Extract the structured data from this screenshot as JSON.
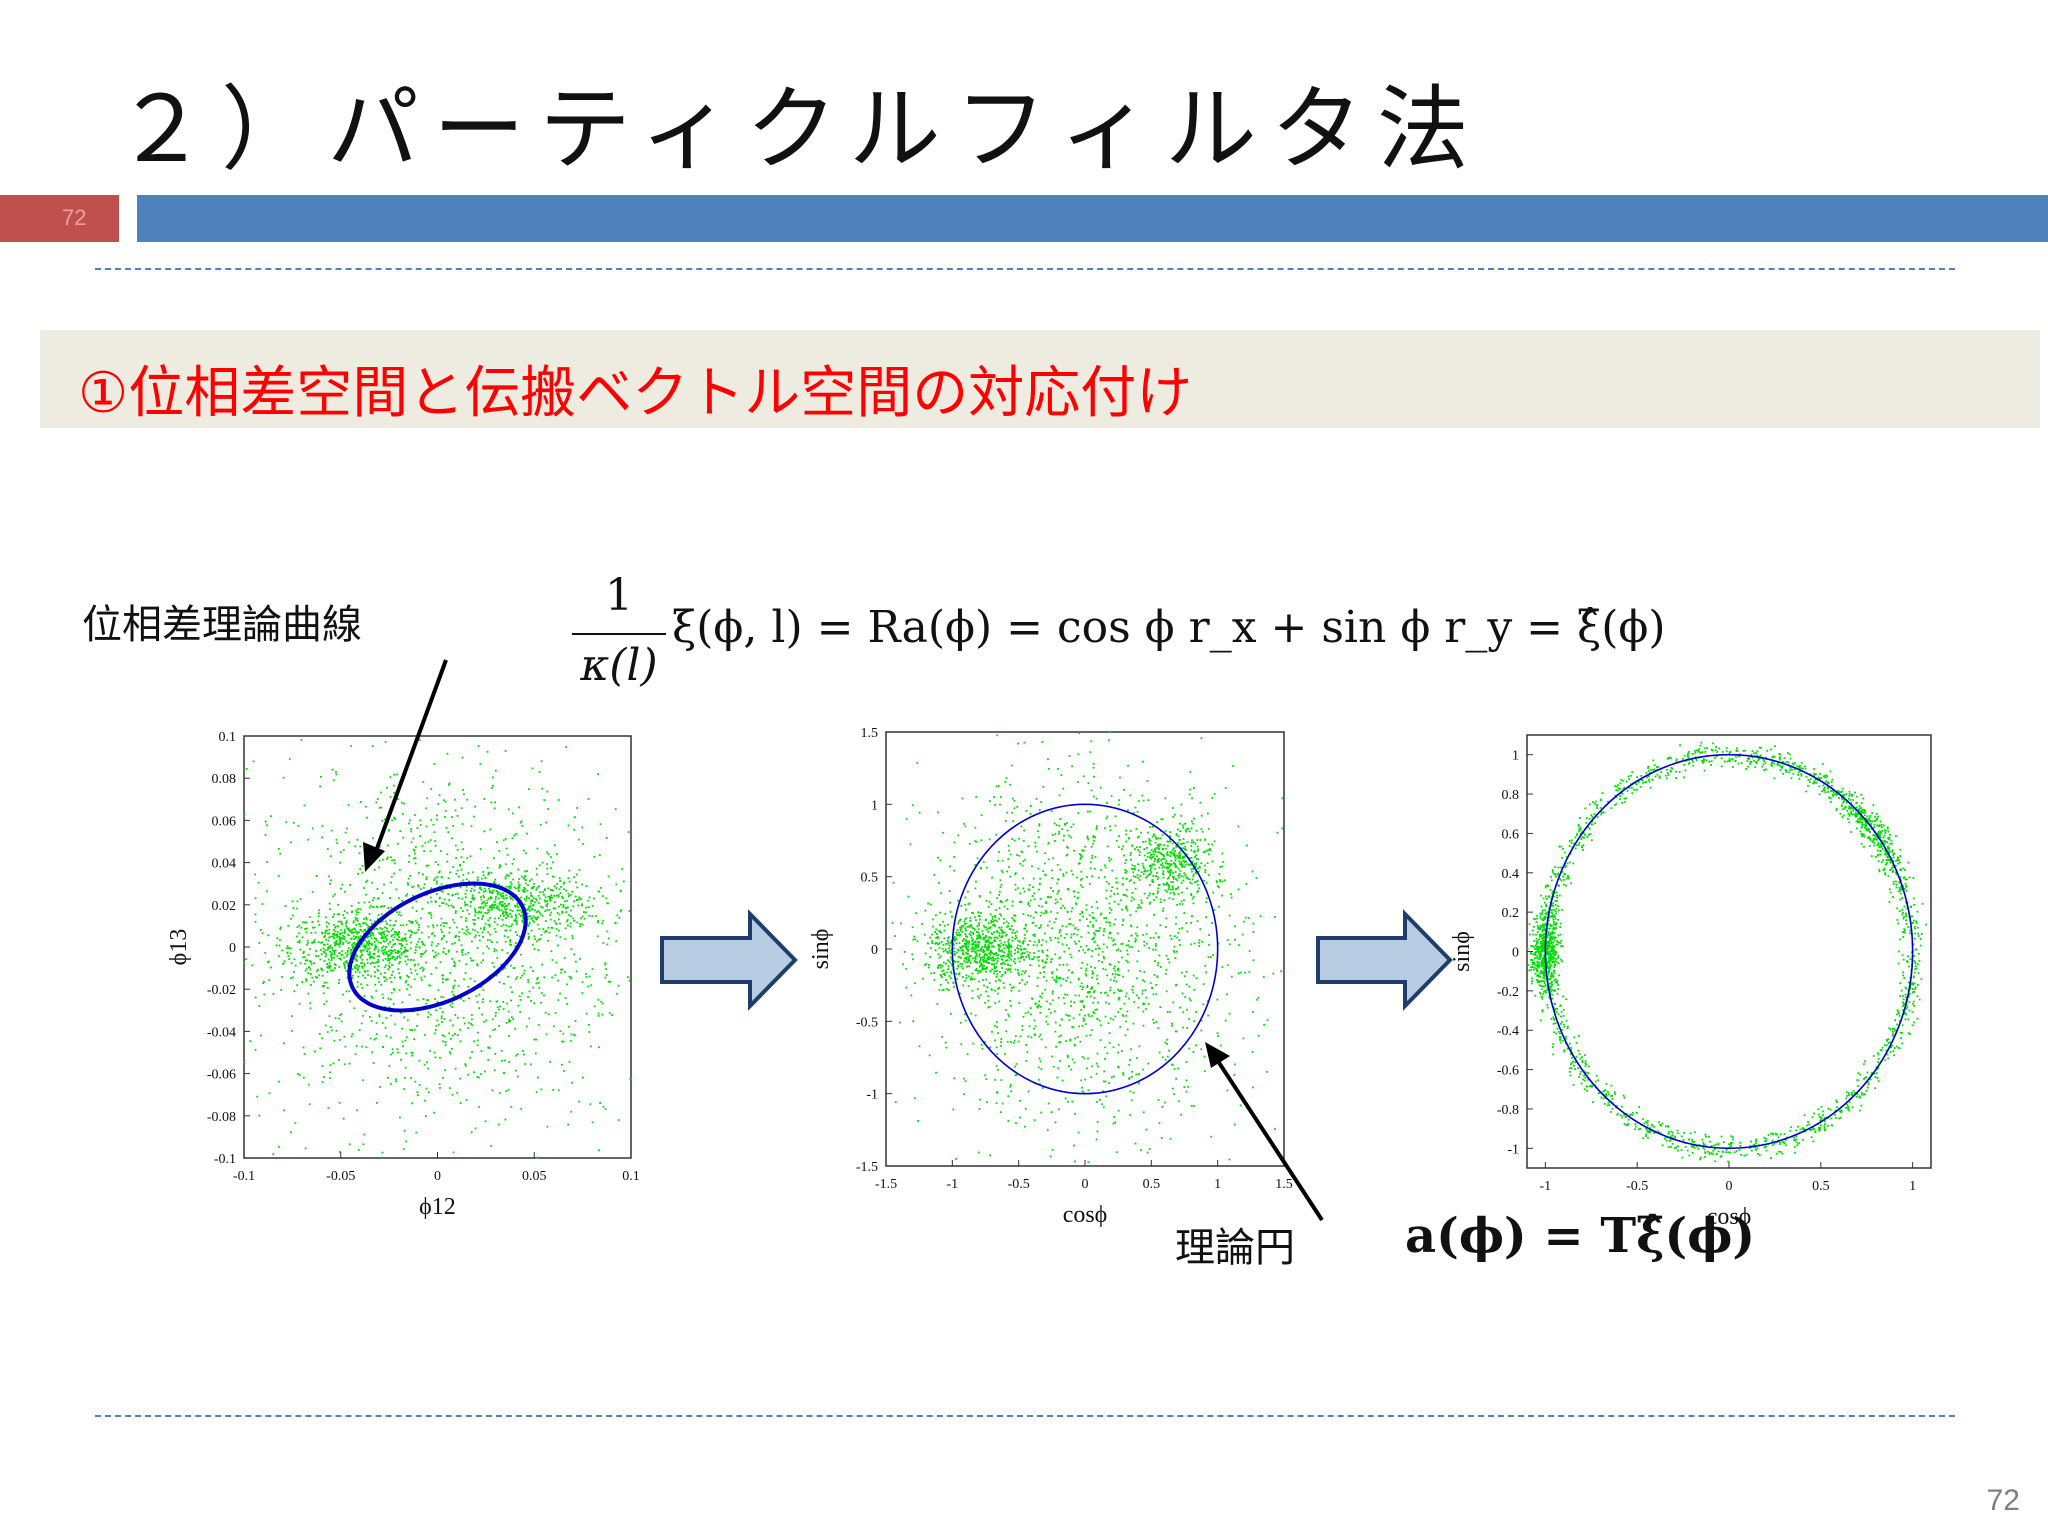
{
  "slide": {
    "title": "２）パーティクルフィルタ法",
    "tab_number": "72",
    "subtitle": "①位相差空間と伝搬ベクトル空間の対応付け",
    "label_curve": "位相差理論曲線",
    "label_circle": "理論円",
    "formula_top": {
      "numerator": "1",
      "denominator": "κ(l)",
      "body": "ξ(ϕ, l) = Ra(ϕ) = cos ϕ r_x + sin ϕ r_y = ξ̂(ϕ)"
    },
    "formula_bottom": "a(ϕ) = Tξ̂(ϕ)",
    "page_number": "72"
  },
  "colors": {
    "accent_blue": "#4f81bd",
    "accent_red": "#c0504d",
    "subtitle_red": "#ff0000",
    "points": "#00dd00",
    "curve": "#0000cc",
    "band": "#eeece1",
    "arrow_fill": "#b8cce4",
    "arrow_stroke": "#1f3d6b"
  },
  "chart_data": [
    {
      "type": "scatter",
      "title": "",
      "xlabel": "ϕ12",
      "ylabel": "ϕ13",
      "xlim": [
        -0.1,
        0.1
      ],
      "ylim": [
        -0.1,
        0.1
      ],
      "xticks": [
        "-0.1",
        "-0.05",
        "0",
        "0.05",
        "0.1"
      ],
      "yticks": [
        "0.1",
        "0.08",
        "0.06",
        "0.04",
        "0.02",
        "0",
        "-0.02",
        "-0.04",
        "-0.06",
        "-0.08",
        "-0.1"
      ],
      "clusters": [
        {
          "center": [
            -0.04,
            0.0
          ],
          "spread": [
            0.018,
            0.008
          ],
          "weight": 0.25
        },
        {
          "center": [
            0.04,
            0.02
          ],
          "spread": [
            0.02,
            0.008
          ],
          "weight": 0.2
        },
        {
          "center": [
            0.0,
            0.0
          ],
          "spread": [
            0.05,
            0.045
          ],
          "weight": 0.55
        }
      ],
      "curve": {
        "shape": "ellipse",
        "center": [
          0.0,
          0.0
        ],
        "semi_axes": [
          0.048,
          0.026
        ],
        "rotation_deg": 22
      }
    },
    {
      "type": "scatter",
      "title": "",
      "xlabel": "cosϕ",
      "ylabel": "sinϕ",
      "xlim": [
        -1.5,
        1.5
      ],
      "ylim": [
        -1.5,
        1.5
      ],
      "xticks": [
        "-1.5",
        "-1",
        "-0.5",
        "0",
        "0.5",
        "1",
        "1.5"
      ],
      "yticks": [
        "1.5",
        "1",
        "0.5",
        "0",
        "-0.5",
        "-1",
        "-1.5"
      ],
      "clusters": [
        {
          "center": [
            -0.8,
            0.0
          ],
          "spread": [
            0.2,
            0.12
          ],
          "weight": 0.25
        },
        {
          "center": [
            0.65,
            0.6
          ],
          "spread": [
            0.15,
            0.12
          ],
          "weight": 0.15
        },
        {
          "center": [
            0.0,
            0.0
          ],
          "spread": [
            0.6,
            0.6
          ],
          "weight": 0.6
        }
      ],
      "curve": {
        "shape": "circle",
        "center": [
          0,
          0
        ],
        "radius": 1
      }
    },
    {
      "type": "scatter",
      "title": "",
      "xlabel": "cosϕ",
      "ylabel": "sinϕ",
      "xlim": [
        -1.1,
        1.1
      ],
      "ylim": [
        -1.1,
        1.1
      ],
      "xticks": [
        "-1",
        "-0.5",
        "0",
        "0.5",
        "1"
      ],
      "yticks": [
        "1",
        "0.8",
        "0.6",
        "0.4",
        "0.2",
        "0",
        "-0.2",
        "-0.4",
        "-0.6",
        "-0.8",
        "-1"
      ],
      "ring_points": {
        "radius": 1,
        "spread": 0.03
      },
      "clusters": [
        {
          "angle_deg": 180,
          "spread_deg": 6,
          "weight": 0.2
        },
        {
          "angle_deg": 40,
          "spread_deg": 8,
          "weight": 0.1
        }
      ],
      "curve": {
        "shape": "circle",
        "center": [
          0,
          0
        ],
        "radius": 1
      }
    }
  ]
}
